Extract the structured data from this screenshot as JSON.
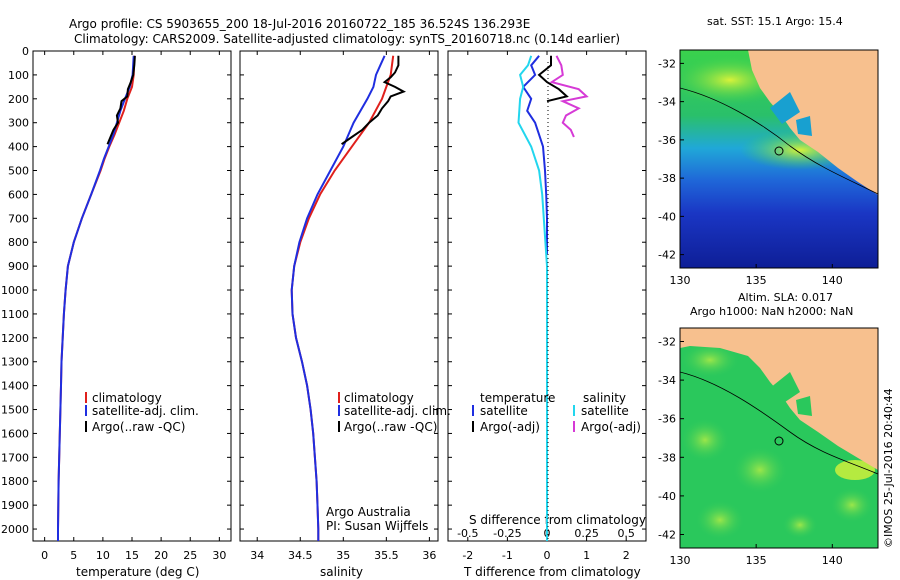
{
  "header": {
    "title_line1": "Argo profile: CS 5903655_200 18-Jul-2016 20160722_185 36.524S 136.293E",
    "title_line2": "Climatology: CARS2009. Satellite-adjusted climatology: synTS_20160718.nc (0.14d earlier)"
  },
  "colors": {
    "climatology": "#e0201c",
    "satellite": "#1f2ee0",
    "argo": "#000000",
    "sal_satellite": "#22d6ee",
    "sal_argo": "#d63ad6",
    "land": "#f7c08e",
    "sst_track": "#000000"
  },
  "depth_axis": {
    "ylim": [
      0,
      2050
    ],
    "ticks": [
      0,
      100,
      200,
      300,
      400,
      500,
      600,
      700,
      800,
      900,
      1000,
      1100,
      1200,
      1300,
      1400,
      1500,
      1600,
      1700,
      1800,
      1900,
      2000
    ]
  },
  "legend": {
    "climatology": "climatology",
    "satellite_adj": "satellite-adj. clim.",
    "argo": "Argo(..raw -QC)"
  },
  "diff_legend": {
    "temperature_head": "temperature",
    "salinity_head": "salinity",
    "t_satellite": "satellite",
    "t_argo": "Argo(-adj)",
    "s_satellite": "satellite",
    "s_argo": "Argo(-adj)"
  },
  "credits": {
    "line1": "Argo Australia",
    "line2": "PI: Susan Wijffels"
  },
  "chart_data": [
    {
      "type": "line",
      "name": "temperature",
      "xlabel": "temperature (deg C)",
      "xlim": [
        -2,
        32
      ],
      "xticks": [
        0,
        5,
        10,
        15,
        20,
        25,
        30
      ],
      "series": [
        {
          "name": "climatology",
          "depth": [
            20,
            100,
            150,
            200,
            250,
            300,
            350,
            400,
            450,
            500,
            600,
            700,
            800,
            900,
            1000,
            1100,
            1200,
            1300,
            1400,
            1500,
            1600,
            1700,
            1800,
            1900,
            2000,
            2050
          ],
          "values": [
            15.4,
            15.3,
            15.0,
            14.2,
            13.6,
            12.8,
            12.0,
            11.1,
            10.3,
            9.6,
            8.0,
            6.4,
            5.0,
            4.0,
            3.6,
            3.3,
            3.1,
            2.9,
            2.8,
            2.7,
            2.6,
            2.5,
            2.4,
            2.35,
            2.3,
            2.3
          ]
        },
        {
          "name": "satellite-adj. clim.",
          "depth": [
            20,
            100,
            150,
            200,
            250,
            300,
            350,
            400,
            450,
            500,
            600,
            700,
            800,
            900,
            1000,
            1100,
            1200,
            1300,
            1400,
            1500,
            1600,
            1700,
            1800,
            1900,
            2000,
            2050
          ],
          "values": [
            15.3,
            15.1,
            14.6,
            13.8,
            13.0,
            12.4,
            11.8,
            11.0,
            10.2,
            9.5,
            8.0,
            6.4,
            5.0,
            4.0,
            3.6,
            3.3,
            3.1,
            2.9,
            2.8,
            2.7,
            2.6,
            2.5,
            2.4,
            2.35,
            2.3,
            2.3
          ]
        },
        {
          "name": "Argo(..raw -QC)",
          "depth": [
            20,
            60,
            100,
            130,
            160,
            190,
            210,
            240,
            270,
            300,
            330,
            360,
            390
          ],
          "values": [
            15.5,
            15.4,
            15.2,
            14.8,
            14.3,
            14.2,
            13.2,
            13.0,
            12.4,
            12.6,
            11.8,
            11.3,
            10.8
          ]
        }
      ]
    },
    {
      "type": "line",
      "name": "salinity",
      "xlabel": "salinity",
      "xlim": [
        33.8,
        36.1
      ],
      "xticks": [
        34,
        34.5,
        35,
        35.5,
        36
      ],
      "series": [
        {
          "name": "climatology",
          "depth": [
            20,
            100,
            150,
            200,
            300,
            400,
            500,
            600,
            700,
            800,
            900,
            1000,
            1100,
            1200,
            1300,
            1400,
            1500,
            1600,
            1700,
            1800,
            1900,
            2000,
            2050
          ],
          "values": [
            35.58,
            35.55,
            35.5,
            35.45,
            35.3,
            35.1,
            34.9,
            34.73,
            34.6,
            34.5,
            34.43,
            34.4,
            34.41,
            34.45,
            34.52,
            34.58,
            34.62,
            34.65,
            34.67,
            34.69,
            34.7,
            34.71,
            34.71
          ]
        },
        {
          "name": "satellite-adj. clim.",
          "depth": [
            20,
            60,
            100,
            150,
            200,
            250,
            300,
            400,
            500,
            600,
            700,
            800,
            900,
            1000,
            1100,
            1200,
            1300,
            1400,
            1500,
            1600,
            1700,
            1800,
            1900,
            2000,
            2050
          ],
          "values": [
            35.48,
            35.43,
            35.38,
            35.35,
            35.28,
            35.2,
            35.12,
            35.0,
            34.85,
            34.7,
            34.58,
            34.49,
            34.43,
            34.4,
            34.41,
            34.45,
            34.52,
            34.58,
            34.62,
            34.65,
            34.67,
            34.69,
            34.7,
            34.71,
            34.71
          ]
        },
        {
          "name": "Argo(..raw -QC)",
          "depth": [
            20,
            60,
            90,
            110,
            130,
            150,
            170,
            190,
            210,
            240,
            270,
            300,
            330,
            360,
            390
          ],
          "values": [
            35.64,
            35.64,
            35.6,
            35.55,
            35.48,
            35.6,
            35.7,
            35.55,
            35.52,
            35.45,
            35.4,
            35.3,
            35.22,
            35.1,
            34.98
          ]
        }
      ]
    },
    {
      "type": "line",
      "name": "difference",
      "xlabel": "T difference from climatology",
      "xlabel_top": "S difference from climatology",
      "xlim": [
        -2.5,
        2.5
      ],
      "xticks": [
        -2,
        -1,
        0,
        1,
        2
      ],
      "xticks_top": [
        "-0.5",
        "-0.25",
        "0",
        "0.25",
        "0.5"
      ],
      "series": [
        {
          "name": "T satellite",
          "depth": [
            20,
            60,
            100,
            150,
            200,
            250,
            300,
            350,
            400,
            500,
            600,
            700,
            800,
            850
          ],
          "values": [
            -0.2,
            -0.4,
            -0.3,
            -0.6,
            -0.4,
            -0.5,
            -0.3,
            -0.2,
            -0.1,
            -0.05,
            -0.02,
            0,
            0,
            0
          ]
        },
        {
          "name": "T Argo(-adj)",
          "depth": [
            20,
            60,
            100,
            130,
            160,
            190,
            210
          ],
          "values": [
            0.1,
            0.1,
            -0.2,
            0.0,
            0.3,
            0.5,
            0.0
          ]
        },
        {
          "name": "S satellite",
          "depth": [
            20,
            60,
            100,
            150,
            200,
            300,
            400,
            500,
            600,
            700,
            800,
            900,
            1000,
            1100,
            1200,
            1300,
            1400,
            1500,
            1600,
            1700,
            1800,
            1900,
            2000,
            2050
          ],
          "values": [
            -0.1,
            -0.12,
            -0.17,
            -0.15,
            -0.17,
            -0.18,
            -0.1,
            -0.05,
            -0.03,
            -0.02,
            -0.01,
            0,
            0,
            0,
            0,
            0,
            0,
            0,
            0,
            0,
            0,
            0,
            0,
            0
          ]
        },
        {
          "name": "S Argo(-adj)",
          "depth": [
            20,
            60,
            100,
            130,
            160,
            190,
            210,
            240,
            270,
            300,
            330,
            360
          ],
          "values": [
            0.06,
            0.09,
            0.1,
            0.03,
            0.2,
            0.25,
            0.1,
            0.2,
            0.12,
            0.1,
            0.15,
            0.17
          ]
        }
      ]
    }
  ],
  "maps": {
    "top": {
      "title": "sat. SST: 15.1 Argo: 15.4",
      "lat_ticks": [
        "-32",
        "-34",
        "-36",
        "-38",
        "-40",
        "-42"
      ],
      "lon_ticks": [
        "130",
        "135",
        "140"
      ]
    },
    "bottom": {
      "title1": "Altim. SLA: 0.017",
      "title2": "Argo h1000: NaN h2000: NaN",
      "lat_ticks": [
        "-32",
        "-34",
        "-36",
        "-38",
        "-40",
        "-42"
      ],
      "lon_ticks": [
        "130",
        "135",
        "140"
      ]
    }
  },
  "stamp": "©IMOS 25-Jul-2016 20:40:44"
}
